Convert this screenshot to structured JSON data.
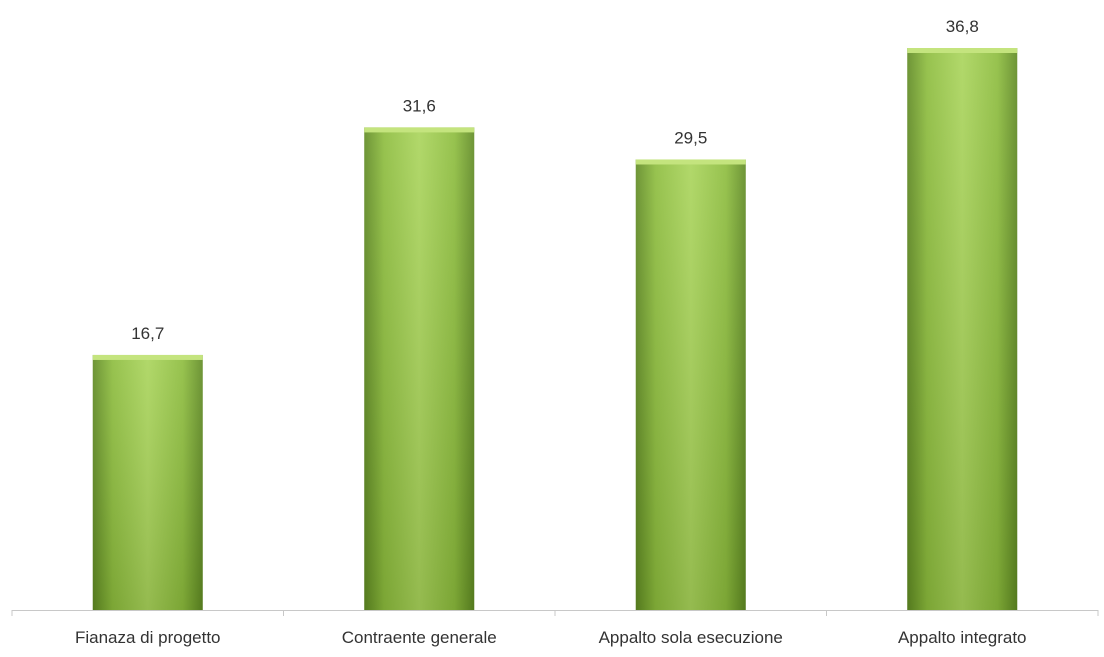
{
  "chart_data": {
    "type": "bar",
    "title": "",
    "xlabel": "",
    "ylabel": "",
    "categories": [
      "Fianaza di progetto",
      "Contraente generale",
      "Appalto sola esecuzione",
      "Appalto integrato"
    ],
    "values": [
      16.7,
      31.6,
      29.5,
      36.8
    ],
    "value_labels": [
      "16,7",
      "31,6",
      "29,5",
      "36,8"
    ],
    "ylim": [
      0,
      40
    ],
    "grid": false,
    "legend": "none",
    "colors": {
      "bar_light": "#a9d45a",
      "bar_mid": "#8cbc3c",
      "bar_dark": "#5f8a22",
      "bar_top": "#c4e47e",
      "axis": "#c8c8c8"
    }
  }
}
